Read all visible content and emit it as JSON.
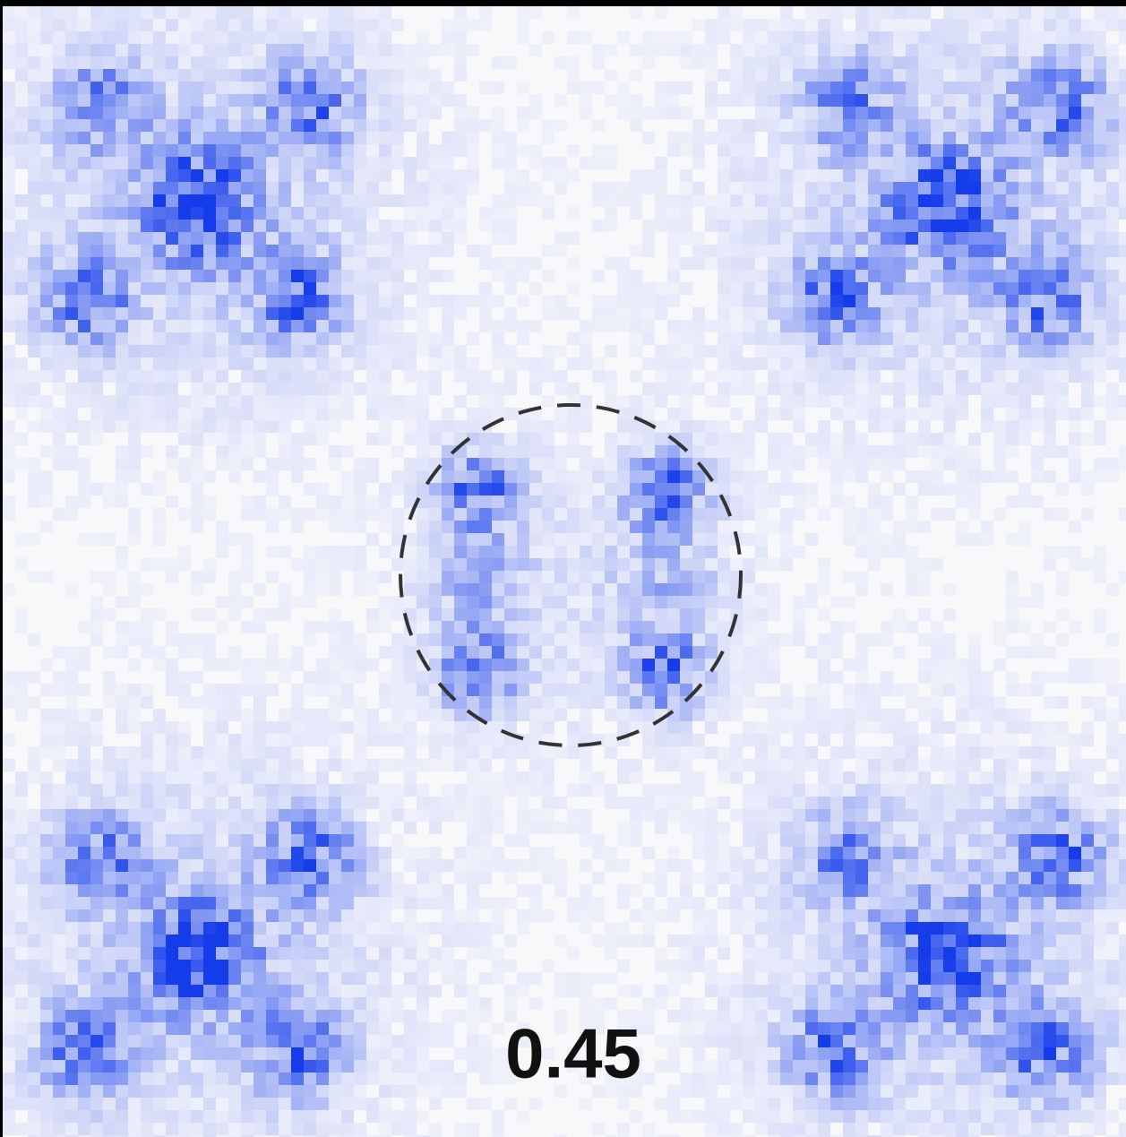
{
  "panel": {
    "label": "0.45"
  }
}
